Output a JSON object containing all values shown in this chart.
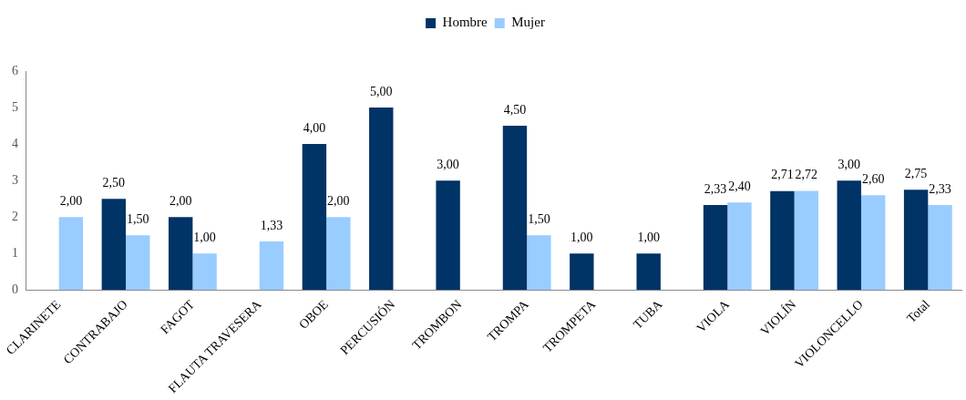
{
  "chart_data": {
    "type": "bar",
    "categories": [
      "CLARINETE",
      "CONTRABAJO",
      "FAGOT",
      "FLAUTA TRAVESERA",
      "OBOE",
      "PERCUSIÓN",
      "TROMBON",
      "TROMPA",
      "TROMPETA",
      "TUBA",
      "VIOLA",
      "VIOLÍN",
      "VIOLONCELLO",
      "Total"
    ],
    "series": [
      {
        "name": "Hombre",
        "color": "#003366",
        "values": [
          null,
          2.5,
          2,
          null,
          4,
          5,
          3,
          4.5,
          1,
          1,
          2.33,
          2.71,
          3,
          2.75
        ],
        "value_labels": [
          null,
          "2,50",
          "2,00",
          null,
          "4,00",
          "5,00",
          "3,00",
          "4,50",
          "1,00",
          "1,00",
          "2,33",
          "2,71",
          "3,00",
          "2,75"
        ]
      },
      {
        "name": "Mujer",
        "color": "#99ccff",
        "values": [
          2,
          1.5,
          1,
          1.33,
          2,
          null,
          null,
          1.5,
          null,
          null,
          2.4,
          2.72,
          2.6,
          2.33
        ],
        "value_labels": [
          "2,00",
          "1,50",
          "1,00",
          "1,33",
          "2,00",
          null,
          null,
          "1,50",
          null,
          null,
          "2,40",
          "2,72",
          "2,60",
          "2,33"
        ]
      }
    ],
    "ylim": [
      0,
      6
    ],
    "yticks": [
      0,
      1,
      2,
      3,
      4,
      5,
      6
    ],
    "grid": false,
    "legend": "top"
  }
}
